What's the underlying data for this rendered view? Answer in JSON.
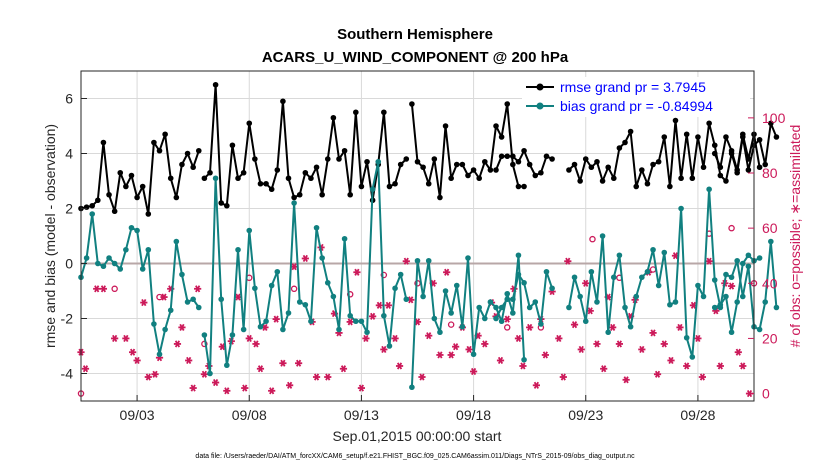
{
  "chart_data": {
    "type": "line",
    "title": [
      "Southern Hemisphere",
      "ACARS_U_WIND_COMPONENT @ 200 hPa"
    ],
    "xlabel": "Sep.01,2015 00:00:00 start",
    "ylabel": "rmse and bias (model - observation)",
    "ylabel_right": "# of obs: o=possible; ∗=assimilated",
    "footnote": "data file: /Users/raeder/DAI/ATM_forcXX/CAM6_setup/f.e21.FHIST_BGC.f09_025.CAM6assim.011/Diags_NTrS_2015-09/obs_diag_output.nc",
    "xlim": [
      0.5,
      30.5
    ],
    "ylim": [
      -5,
      7
    ],
    "ylim_right": [
      -2.7,
      117
    ],
    "x_tick_values": [
      3,
      8,
      13,
      18,
      23,
      28
    ],
    "x_tick_labels": [
      "09/03",
      "09/08",
      "09/13",
      "09/18",
      "09/23",
      "09/28"
    ],
    "y_ticks": [
      -4,
      -2,
      0,
      2,
      4,
      6
    ],
    "y_ticks_right": [
      0,
      20,
      40,
      60,
      80,
      100
    ],
    "grid": true,
    "legend_position": "top-right",
    "colors": {
      "rmse": "#000000",
      "bias": "#118080",
      "obs": "#cc1a5a",
      "zero_line": "#b8a7a7"
    },
    "series": [
      {
        "name": "rmse grand pr = 3.7945",
        "segments": [
          {
            "start": 0.5,
            "values": [
              2.0,
              2.05,
              2.1,
              2.3,
              4.4,
              2.5,
              1.9,
              3.3,
              2.8,
              3.2,
              2.4,
              2.8,
              1.8,
              4.4,
              4.1,
              4.7,
              3.1,
              2.4,
              3.6,
              4.0,
              3.5,
              4.1
            ]
          },
          {
            "start": 6.0,
            "values": [
              3.1,
              3.3,
              6.5,
              2.2,
              2.1,
              4.3,
              3.1,
              3.3,
              5.1,
              3.8,
              2.9,
              2.9,
              2.7,
              3.4,
              5.9,
              3.1,
              2.4,
              2.5,
              3.3,
              3.1,
              3.5,
              2.5,
              3.8,
              5.3,
              3.8,
              4.1,
              2.5,
              5.5,
              2.8,
              3.7,
              2.3,
              3.6,
              5.5,
              2.8,
              2.9,
              3.6,
              3.8
            ]
          },
          {
            "start": 15.25,
            "values": [
              5.8,
              3.7,
              3.5,
              2.9,
              3.8,
              2.4,
              5.0,
              3.1,
              3.6,
              3.6,
              3.2,
              3.4,
              3.1,
              3.7,
              3.4,
              5.0,
              4.6,
              5.8,
              3.6,
              2.8,
              2.8
            ]
          },
          {
            "start": 19.0,
            "values": [
              3.4,
              3.9,
              3.9,
              3.9,
              3.7,
              4.1,
              3.6,
              3.2,
              3.3,
              3.9,
              3.8
            ]
          },
          {
            "start": 22.25,
            "values": [
              3.4,
              3.6,
              3.0,
              3.8,
              3.5,
              3.7,
              3.0,
              3.5,
              3.1,
              4.2,
              4.4,
              4.8,
              2.8,
              3.4,
              2.9,
              3.6,
              3.7,
              4.6,
              2.8,
              5.2,
              3.1,
              4.7,
              3.1,
              4.6,
              3.5,
              5.1,
              4.3,
              3.2,
              3.0,
              4.0,
              3.3,
              4.6,
              3.4,
              4.3,
              4.5,
              3.6,
              5.1,
              4.6
            ]
          },
          {
            "start": 28.75,
            "values": [
              4.0,
              3.5,
              4.6,
              4.1,
              3.4,
              4.7,
              3.8,
              4.7,
              3.5
            ]
          }
        ]
      },
      {
        "name": "bias grand pr = -0.84994",
        "segments": [
          {
            "start": 0.5,
            "values": [
              -0.5,
              0.2,
              1.8,
              0.0,
              -0.1,
              0.2,
              0.0,
              -0.2,
              0.5,
              1.3,
              1.2,
              -0.2,
              0.5,
              -2.2,
              -3.3,
              -2.4,
              -1.7,
              0.8,
              -0.4,
              -1.4,
              -1.3,
              -1.6
            ]
          },
          {
            "start": 6.0,
            "values": [
              -2.6,
              -4.0,
              3.1,
              -1.3,
              -3.7,
              -2.6,
              0.5,
              -2.4,
              1.2,
              -0.9,
              -2.3,
              -2.1,
              -0.8,
              -0.3,
              -2.4,
              -1.8,
              2.2,
              -1.4,
              -1.5,
              -2.1,
              1.3,
              0.2,
              -0.7,
              -1.2,
              -2.4,
              0.9,
              -1.9,
              -2.1,
              -2.1,
              -2.5,
              2.7,
              3.7,
              -1.9,
              -3.0,
              -0.9,
              -0.4,
              -1.3
            ]
          },
          {
            "start": 15.25,
            "values": [
              -4.5,
              0.1,
              -1.2,
              0.1,
              -2.0,
              -2.5,
              -1.0,
              -1.8,
              -0.8,
              -2.3,
              0.2,
              -3.3,
              -1.6,
              -2.0,
              -1.4,
              -1.6,
              -2.1,
              -1.1,
              -1.8,
              0.3,
              -3.5
            ]
          },
          {
            "start": 19.0,
            "values": [
              -2.0,
              -1.6,
              -1.3,
              -1.3,
              -0.4,
              -0.7,
              -1.6,
              -1.4,
              -2.2,
              -0.3,
              -0.9
            ]
          },
          {
            "start": 22.25,
            "values": [
              -1.6,
              -0.5,
              -1.2,
              -2.1,
              -0.3,
              -1.4,
              1.0,
              -2.5,
              -0.5,
              0.3,
              -1.6,
              -2.3,
              -1.2,
              -0.5,
              -0.3,
              0.5,
              -0.8,
              0.4,
              -1.5,
              -1.4,
              2.0,
              -2.7,
              -3.4,
              -0.8,
              -1.2,
              2.7,
              -0.6,
              -1.6,
              -0.4,
              -0.5,
              0.1,
              -1.2,
              -0.1,
              -2.3,
              -2.4,
              -1.4,
              0.8,
              -1.6
            ]
          },
          {
            "start": 28.75,
            "values": [
              -1.6,
              -1.5,
              -1.2,
              -2.5,
              -1.4,
              -0.0,
              0.3,
              0.1,
              0.2
            ]
          }
        ]
      }
    ],
    "obs_possible": [
      [
        0.5,
        0
      ],
      [
        2.0,
        38
      ],
      [
        4.0,
        35
      ],
      [
        6.0,
        18
      ],
      [
        8.0,
        42
      ],
      [
        10.0,
        38
      ],
      [
        12.5,
        36
      ],
      [
        14.0,
        43
      ],
      [
        15.5,
        40
      ],
      [
        17.0,
        25
      ],
      [
        19.5,
        24
      ],
      [
        21.0,
        24
      ],
      [
        23.3,
        56
      ],
      [
        24.5,
        42
      ],
      [
        26.0,
        45
      ],
      [
        28.5,
        58
      ],
      [
        29.5,
        60
      ],
      [
        30.5,
        40
      ]
    ],
    "obs_assimilated": [
      [
        0.5,
        15
      ],
      [
        0.7,
        9
      ],
      [
        1.2,
        38
      ],
      [
        1.5,
        38
      ],
      [
        2.0,
        20
      ],
      [
        2.5,
        20
      ],
      [
        2.8,
        15
      ],
      [
        3.0,
        12
      ],
      [
        3.3,
        33
      ],
      [
        3.5,
        6
      ],
      [
        3.8,
        7
      ],
      [
        4.0,
        13
      ],
      [
        4.2,
        35
      ],
      [
        4.5,
        38
      ],
      [
        4.8,
        18
      ],
      [
        5.0,
        24
      ],
      [
        5.3,
        12
      ],
      [
        5.5,
        2
      ],
      [
        5.7,
        38
      ],
      [
        6.0,
        7
      ],
      [
        6.2,
        10
      ],
      [
        6.5,
        4
      ],
      [
        6.8,
        17
      ],
      [
        7.0,
        1
      ],
      [
        7.2,
        19
      ],
      [
        7.5,
        35
      ],
      [
        7.8,
        2
      ],
      [
        8.0,
        20
      ],
      [
        8.3,
        18
      ],
      [
        8.5,
        9
      ],
      [
        8.7,
        24
      ],
      [
        9.0,
        1
      ],
      [
        9.2,
        27
      ],
      [
        9.5,
        11
      ],
      [
        9.8,
        3
      ],
      [
        10.0,
        46
      ],
      [
        10.2,
        11
      ],
      [
        10.5,
        49
      ],
      [
        10.8,
        26
      ],
      [
        11.0,
        6
      ],
      [
        11.2,
        53
      ],
      [
        11.5,
        6
      ],
      [
        11.8,
        29
      ],
      [
        12.0,
        22
      ],
      [
        12.2,
        9
      ],
      [
        12.5,
        26
      ],
      [
        12.8,
        44
      ],
      [
        13.0,
        2
      ],
      [
        13.2,
        20
      ],
      [
        13.5,
        28
      ],
      [
        13.8,
        32
      ],
      [
        14.0,
        16
      ],
      [
        14.2,
        32
      ],
      [
        14.5,
        20
      ],
      [
        14.7,
        10
      ],
      [
        15.0,
        48
      ],
      [
        15.2,
        34
      ],
      [
        15.5,
        26
      ],
      [
        15.7,
        6
      ],
      [
        16.0,
        21
      ],
      [
        16.2,
        40
      ],
      [
        16.5,
        14
      ],
      [
        16.8,
        44
      ],
      [
        17.0,
        14
      ],
      [
        17.2,
        17
      ],
      [
        17.5,
        24
      ],
      [
        17.8,
        16
      ],
      [
        18.0,
        8
      ],
      [
        18.2,
        21
      ],
      [
        18.5,
        18
      ],
      [
        18.8,
        33
      ],
      [
        19.0,
        28
      ],
      [
        19.2,
        12
      ],
      [
        19.5,
        27
      ],
      [
        19.8,
        38
      ],
      [
        20.0,
        20
      ],
      [
        20.2,
        10
      ],
      [
        20.5,
        24
      ],
      [
        20.8,
        3
      ],
      [
        21.0,
        27
      ],
      [
        21.2,
        14
      ],
      [
        21.5,
        37
      ],
      [
        21.8,
        20
      ],
      [
        22.0,
        6
      ],
      [
        22.2,
        48
      ],
      [
        22.5,
        25
      ],
      [
        22.8,
        16
      ],
      [
        23.0,
        40
      ],
      [
        23.2,
        30
      ],
      [
        23.5,
        18
      ],
      [
        23.8,
        9
      ],
      [
        24.0,
        35
      ],
      [
        24.2,
        24
      ],
      [
        24.5,
        18
      ],
      [
        24.8,
        5
      ],
      [
        25.0,
        28
      ],
      [
        25.2,
        34
      ],
      [
        25.5,
        16
      ],
      [
        25.8,
        44
      ],
      [
        26.0,
        22
      ],
      [
        26.2,
        7
      ],
      [
        26.5,
        18
      ],
      [
        26.8,
        12
      ],
      [
        27.0,
        50
      ],
      [
        27.2,
        24
      ],
      [
        27.5,
        10
      ],
      [
        27.8,
        32
      ],
      [
        28.0,
        20
      ],
      [
        28.2,
        6
      ],
      [
        28.5,
        48
      ],
      [
        28.8,
        30
      ],
      [
        29.0,
        10
      ],
      [
        29.2,
        40
      ],
      [
        29.5,
        39
      ],
      [
        29.8,
        15
      ],
      [
        30.0,
        10
      ],
      [
        30.3,
        0
      ]
    ]
  }
}
